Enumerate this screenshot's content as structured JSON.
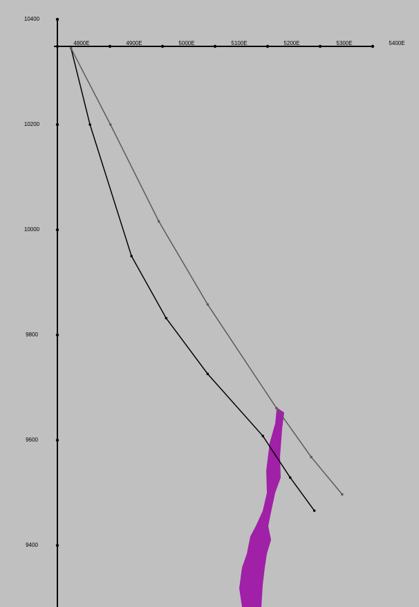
{
  "chart_data": {
    "type": "line",
    "xlim": [
      4800,
      5400
    ],
    "ylim": [
      9300,
      10400
    ],
    "xticks": [
      {
        "value": 4800,
        "label": "4800E"
      },
      {
        "value": 4900,
        "label": "4900E"
      },
      {
        "value": 5000,
        "label": "5000E"
      },
      {
        "value": 5100,
        "label": "5100E"
      },
      {
        "value": 5200,
        "label": "5200E"
      },
      {
        "value": 5300,
        "label": "5300E"
      },
      {
        "value": 5400,
        "label": "5400E"
      }
    ],
    "yticks": [
      9400,
      9600,
      9800,
      10000,
      10200,
      10400
    ],
    "series": [
      {
        "color": "#000000",
        "x": [
          4826,
          4862,
          4941,
          5007,
          5086,
          5191,
          5243,
          5289
        ],
        "values": [
          10345,
          10200,
          9950,
          9832,
          9726,
          9608,
          9529,
          9466
        ]
      },
      {
        "color": "#5a5a5a",
        "x": [
          4826,
          4901,
          4993,
          5086,
          5217,
          5283,
          5342
        ],
        "values": [
          10345,
          10200,
          10016,
          9858,
          9661,
          9568,
          9497
        ]
      }
    ]
  }
}
